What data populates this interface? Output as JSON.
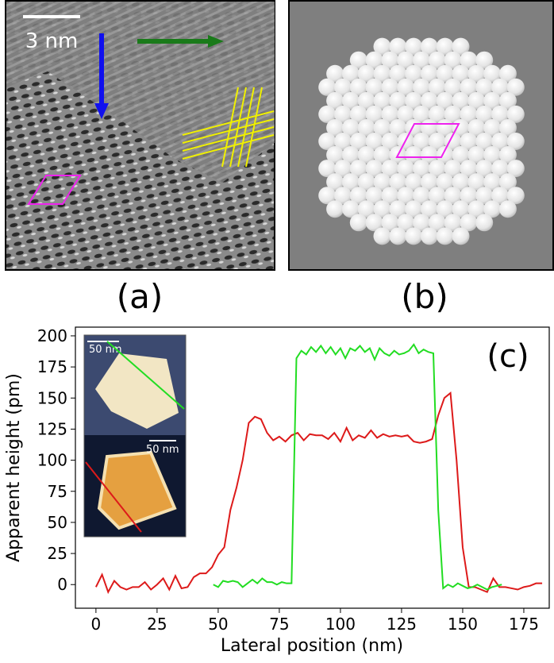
{
  "panels": {
    "a": {
      "label": "(a)",
      "scale_bar": "3 nm"
    },
    "b": {
      "label": "(b)"
    }
  },
  "chart_data": {
    "type": "line",
    "label": "(c)",
    "x_label": "Lateral position (nm)",
    "y_label": "Apparent height (pm)",
    "inset_scale_bars": [
      "50 nm",
      "50 nm"
    ],
    "xlim": [
      -8.4,
      185.4
    ],
    "ylim": [
      -19,
      207
    ],
    "xticks": [
      0,
      25,
      50,
      75,
      100,
      125,
      150,
      175
    ],
    "yticks": [
      0,
      25,
      50,
      75,
      100,
      125,
      150,
      175,
      200
    ],
    "series": [
      {
        "color": "#dd1a1a",
        "x": [
          0,
          2.5,
          5,
          7.5,
          10,
          12.5,
          15,
          17.5,
          20,
          22.5,
          25,
          27.5,
          30,
          32.5,
          35,
          37.5,
          40,
          42.5,
          45,
          47.5,
          50,
          52.5,
          55,
          57.5,
          60,
          62.5,
          65,
          67.5,
          70,
          72.5,
          75,
          77.5,
          80,
          82.5,
          85,
          87.5,
          90,
          92.5,
          95,
          97.5,
          100,
          102.5,
          105,
          107.5,
          110,
          112.5,
          115,
          117.5,
          120,
          122.5,
          125,
          127.5,
          130,
          132.5,
          135,
          137.5,
          140,
          142.5,
          145,
          147.5,
          150,
          152.5,
          155,
          157.5,
          160,
          162.5,
          165,
          167.5,
          170,
          172.5,
          175,
          177.5,
          180,
          182.5
        ],
        "values": [
          -2,
          8,
          -6,
          3,
          -2,
          -4,
          -2,
          -2,
          2,
          -4,
          0,
          5,
          -4,
          7,
          -3,
          -2,
          6,
          9,
          9,
          14,
          24,
          30,
          60,
          78,
          100,
          130,
          135,
          133,
          122,
          116,
          119,
          115,
          120,
          122,
          116,
          121,
          120,
          120,
          117,
          122,
          115,
          126,
          116,
          120,
          118,
          124,
          118,
          121,
          119,
          120,
          119,
          120,
          115,
          114,
          115,
          117,
          136,
          150,
          154,
          100,
          30,
          -2,
          -2,
          -4,
          -6,
          5,
          -2,
          -2,
          -3,
          -4,
          -2,
          -1,
          1,
          1
        ]
      },
      {
        "color": "#22dd22",
        "x": [
          48,
          50,
          52,
          54,
          56,
          58,
          60,
          62,
          64,
          66,
          68,
          70,
          72,
          74,
          76,
          78,
          80,
          82,
          84,
          86,
          88,
          90,
          92,
          94,
          96,
          98,
          100,
          102,
          104,
          106,
          108,
          110,
          112,
          114,
          116,
          118,
          120,
          122,
          124,
          126,
          128,
          130,
          132,
          134,
          136,
          138,
          140,
          142,
          144,
          146,
          148,
          150,
          152,
          154,
          156,
          158,
          160,
          162,
          164,
          166
        ],
        "values": [
          0,
          -2,
          3,
          2,
          3,
          2,
          -2,
          1,
          4,
          1,
          5,
          2,
          2,
          0,
          2,
          1,
          1,
          182,
          188,
          185,
          191,
          187,
          192,
          186,
          191,
          185,
          190,
          182,
          190,
          188,
          192,
          187,
          190,
          181,
          190,
          186,
          184,
          188,
          185,
          186,
          188,
          193,
          186,
          189,
          187,
          186,
          60,
          -3,
          0,
          -2,
          1,
          -1,
          -3,
          -2,
          0,
          -2,
          -4,
          -2,
          -1,
          0
        ]
      }
    ]
  }
}
